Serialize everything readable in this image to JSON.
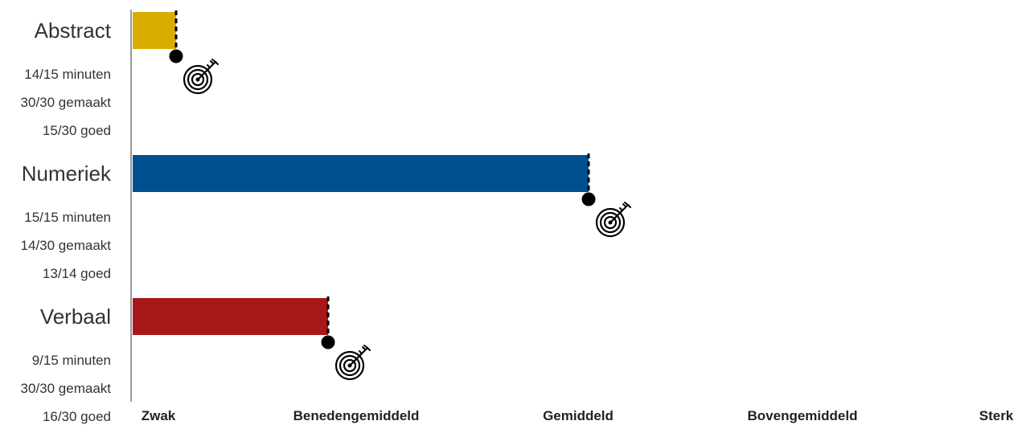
{
  "chart_data": {
    "type": "bar",
    "orientation": "horizontal",
    "scale_labels": [
      "Zwak",
      "Benedengemiddeld",
      "Gemiddeld",
      "Bovengemiddeld",
      "Sterk"
    ],
    "xlim": [
      0,
      4
    ],
    "categories": [
      {
        "name": "Abstract",
        "value": 0.2,
        "target": 0.2,
        "color": "#D9AD00",
        "stats": [
          "14/15 minuten",
          "30/30 gemaakt",
          "15/30 goed"
        ]
      },
      {
        "name": "Numeriek",
        "value": 2.1,
        "target": 2.1,
        "color": "#005090",
        "stats": [
          "15/15 minuten",
          "14/30 gemaakt",
          "13/14 goed"
        ]
      },
      {
        "name": "Verbaal",
        "value": 0.9,
        "target": 0.9,
        "color": "#A8181A",
        "stats": [
          "9/15 minuten",
          "30/30 gemaakt",
          "16/30 goed"
        ]
      }
    ],
    "marker_icon": "target-dart-icon",
    "axis_color": "#999999"
  }
}
